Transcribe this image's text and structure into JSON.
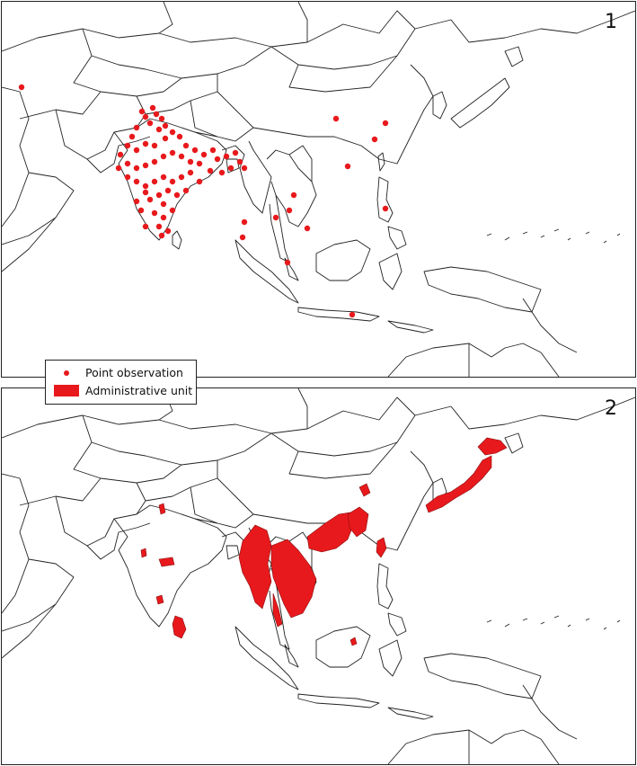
{
  "panels": [
    {
      "label": "1",
      "layer": "point-observations"
    },
    {
      "label": "2",
      "layer": "administrative-units"
    }
  ],
  "legend": {
    "point_label": "Point observation",
    "area_label": "Administrative unit"
  },
  "colors": {
    "observation": "#e8191c",
    "boundary": "#222222",
    "background": "#ffffff"
  }
}
